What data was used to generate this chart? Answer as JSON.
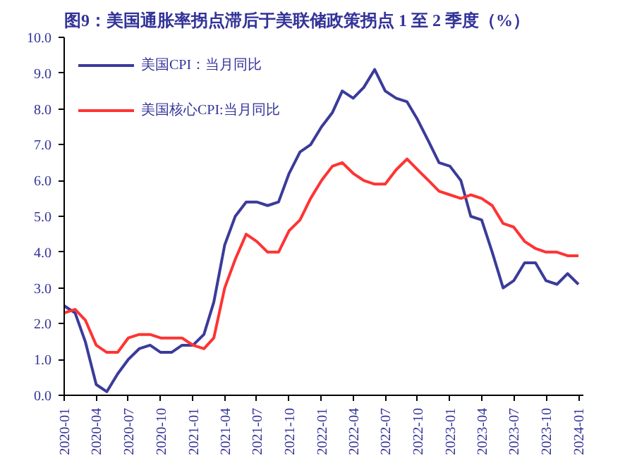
{
  "chart_data": {
    "type": "line",
    "title": "图9：美国通胀率拐点滞后于美联储政策拐点 1 至 2 季度（%）",
    "x": [
      "2020-01",
      "2020-02",
      "2020-03",
      "2020-04",
      "2020-05",
      "2020-06",
      "2020-07",
      "2020-08",
      "2020-09",
      "2020-10",
      "2020-11",
      "2020-12",
      "2021-01",
      "2021-02",
      "2021-03",
      "2021-04",
      "2021-05",
      "2021-06",
      "2021-07",
      "2021-08",
      "2021-09",
      "2021-10",
      "2021-11",
      "2021-12",
      "2022-01",
      "2022-02",
      "2022-03",
      "2022-04",
      "2022-05",
      "2022-06",
      "2022-07",
      "2022-08",
      "2022-09",
      "2022-10",
      "2022-11",
      "2022-12",
      "2023-01",
      "2023-02",
      "2023-03",
      "2023-04",
      "2023-05",
      "2023-06",
      "2023-07",
      "2023-08",
      "2023-09",
      "2023-10",
      "2023-11",
      "2023-12",
      "2024-01"
    ],
    "series": [
      {
        "name": "美国CPI：当月同比",
        "color": "#3b3b9b",
        "values": [
          2.5,
          2.3,
          1.5,
          0.3,
          0.1,
          0.6,
          1.0,
          1.3,
          1.4,
          1.2,
          1.2,
          1.4,
          1.4,
          1.7,
          2.6,
          4.2,
          5.0,
          5.4,
          5.4,
          5.3,
          5.4,
          6.2,
          6.8,
          7.0,
          7.5,
          7.9,
          8.5,
          8.3,
          8.6,
          9.1,
          8.5,
          8.3,
          8.2,
          7.7,
          7.1,
          6.5,
          6.4,
          6.0,
          5.0,
          4.9,
          4.0,
          3.0,
          3.2,
          3.7,
          3.7,
          3.2,
          3.1,
          3.4,
          3.1
        ]
      },
      {
        "name": "美国核心CPI:当月同比",
        "color": "#ff3333",
        "values": [
          2.3,
          2.4,
          2.1,
          1.4,
          1.2,
          1.2,
          1.6,
          1.7,
          1.7,
          1.6,
          1.6,
          1.6,
          1.4,
          1.3,
          1.6,
          3.0,
          3.8,
          4.5,
          4.3,
          4.0,
          4.0,
          4.6,
          4.9,
          5.5,
          6.0,
          6.4,
          6.5,
          6.2,
          6.0,
          5.9,
          5.9,
          6.3,
          6.6,
          6.3,
          6.0,
          5.7,
          5.6,
          5.5,
          5.6,
          5.5,
          5.3,
          4.8,
          4.7,
          4.3,
          4.1,
          4.0,
          4.0,
          3.9,
          3.9
        ]
      }
    ],
    "xlim": [
      "2020-01",
      "2024-01-15"
    ],
    "xticks": [
      {
        "value": "2020-01",
        "label": "2020-01"
      },
      {
        "value": "2020-04",
        "label": "2020-04"
      },
      {
        "value": "2020-07",
        "label": "2020-07"
      },
      {
        "value": "2020-10",
        "label": "2020-10"
      },
      {
        "value": "2021-01",
        "label": "2021-01"
      },
      {
        "value": "2021-04",
        "label": "2021-04"
      },
      {
        "value": "2021-07",
        "label": "2021-07"
      },
      {
        "value": "2021-10",
        "label": "2021-10"
      },
      {
        "value": "2022-01",
        "label": "2022-01"
      },
      {
        "value": "2022-04",
        "label": "2022-04"
      },
      {
        "value": "2022-07",
        "label": "2022-07"
      },
      {
        "value": "2022-10",
        "label": "2022-10"
      },
      {
        "value": "2023-01",
        "label": "2023-01"
      },
      {
        "value": "2023-04",
        "label": "2023-04"
      },
      {
        "value": "2023-07",
        "label": "2023-07"
      },
      {
        "value": "2023-10",
        "label": "2023-10"
      },
      {
        "value": "2024-01",
        "label": "2024-01"
      }
    ],
    "ylim": [
      0,
      10
    ],
    "yticks": [
      {
        "value": 0,
        "label": "0.0"
      },
      {
        "value": 1,
        "label": "1.0"
      },
      {
        "value": 2,
        "label": "2.0"
      },
      {
        "value": 3,
        "label": "3.0"
      },
      {
        "value": 4,
        "label": "4.0"
      },
      {
        "value": 5,
        "label": "5.0"
      },
      {
        "value": 6,
        "label": "6.0"
      },
      {
        "value": 7,
        "label": "7.0"
      },
      {
        "value": 8,
        "label": "8.0"
      },
      {
        "value": 9,
        "label": "9.0"
      },
      {
        "value": 10,
        "label": "10.0"
      }
    ],
    "grid": false,
    "legend": "top left",
    "marker": "none",
    "line_style": "solid"
  }
}
